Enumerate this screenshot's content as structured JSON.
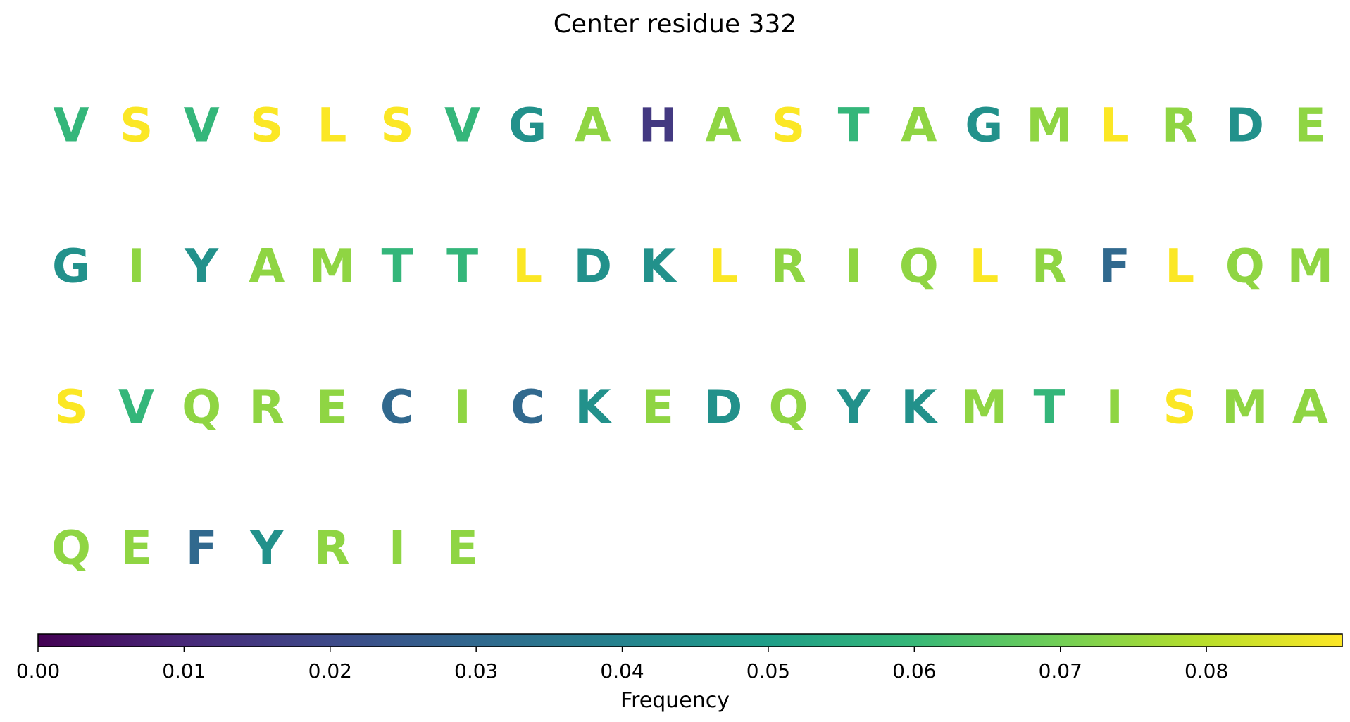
{
  "title": "Center residue 332",
  "chart_data": {
    "type": "heatmap",
    "title": "Center residue 332",
    "layout": "residue letters arranged in rows of 20, each colored by frequency (viridis colormap)",
    "colormap": "viridis",
    "residues": [
      {
        "letter": "V",
        "value": 0.059
      },
      {
        "letter": "S",
        "value": 0.089
      },
      {
        "letter": "V",
        "value": 0.059
      },
      {
        "letter": "S",
        "value": 0.089
      },
      {
        "letter": "L",
        "value": 0.089
      },
      {
        "letter": "S",
        "value": 0.089
      },
      {
        "letter": "V",
        "value": 0.059
      },
      {
        "letter": "G",
        "value": 0.045
      },
      {
        "letter": "A",
        "value": 0.074
      },
      {
        "letter": "H",
        "value": 0.015
      },
      {
        "letter": "A",
        "value": 0.074
      },
      {
        "letter": "S",
        "value": 0.089
      },
      {
        "letter": "T",
        "value": 0.059
      },
      {
        "letter": "A",
        "value": 0.074
      },
      {
        "letter": "G",
        "value": 0.045
      },
      {
        "letter": "M",
        "value": 0.074
      },
      {
        "letter": "L",
        "value": 0.089
      },
      {
        "letter": "R",
        "value": 0.074
      },
      {
        "letter": "D",
        "value": 0.045
      },
      {
        "letter": "E",
        "value": 0.074
      },
      {
        "letter": "G",
        "value": 0.045
      },
      {
        "letter": "I",
        "value": 0.074
      },
      {
        "letter": "Y",
        "value": 0.045
      },
      {
        "letter": "A",
        "value": 0.074
      },
      {
        "letter": "M",
        "value": 0.074
      },
      {
        "letter": "T",
        "value": 0.059
      },
      {
        "letter": "T",
        "value": 0.059
      },
      {
        "letter": "L",
        "value": 0.089
      },
      {
        "letter": "D",
        "value": 0.045
      },
      {
        "letter": "K",
        "value": 0.045
      },
      {
        "letter": "L",
        "value": 0.089
      },
      {
        "letter": "R",
        "value": 0.074
      },
      {
        "letter": "I",
        "value": 0.074
      },
      {
        "letter": "Q",
        "value": 0.074
      },
      {
        "letter": "L",
        "value": 0.089
      },
      {
        "letter": "R",
        "value": 0.074
      },
      {
        "letter": "F",
        "value": 0.03
      },
      {
        "letter": "L",
        "value": 0.089
      },
      {
        "letter": "Q",
        "value": 0.074
      },
      {
        "letter": "M",
        "value": 0.074
      },
      {
        "letter": "S",
        "value": 0.089
      },
      {
        "letter": "V",
        "value": 0.059
      },
      {
        "letter": "Q",
        "value": 0.074
      },
      {
        "letter": "R",
        "value": 0.074
      },
      {
        "letter": "E",
        "value": 0.074
      },
      {
        "letter": "C",
        "value": 0.03
      },
      {
        "letter": "I",
        "value": 0.074
      },
      {
        "letter": "C",
        "value": 0.03
      },
      {
        "letter": "K",
        "value": 0.045
      },
      {
        "letter": "E",
        "value": 0.074
      },
      {
        "letter": "D",
        "value": 0.045
      },
      {
        "letter": "Q",
        "value": 0.074
      },
      {
        "letter": "Y",
        "value": 0.045
      },
      {
        "letter": "K",
        "value": 0.045
      },
      {
        "letter": "M",
        "value": 0.074
      },
      {
        "letter": "T",
        "value": 0.059
      },
      {
        "letter": "I",
        "value": 0.074
      },
      {
        "letter": "S",
        "value": 0.089
      },
      {
        "letter": "M",
        "value": 0.074
      },
      {
        "letter": "A",
        "value": 0.074
      },
      {
        "letter": "Q",
        "value": 0.074
      },
      {
        "letter": "E",
        "value": 0.074
      },
      {
        "letter": "F",
        "value": 0.03
      },
      {
        "letter": "Y",
        "value": 0.045
      },
      {
        "letter": "R",
        "value": 0.074
      },
      {
        "letter": "I",
        "value": 0.074
      },
      {
        "letter": "E",
        "value": 0.074
      }
    ],
    "colorbar": {
      "label": "Frequency",
      "range": [
        0,
        0.0893
      ],
      "ticks": [
        "0.00",
        "0.01",
        "0.02",
        "0.03",
        "0.04",
        "0.05",
        "0.06",
        "0.07",
        "0.08"
      ]
    }
  },
  "colors": {
    "viridis_stops": [
      "#440154",
      "#482878",
      "#3e4989",
      "#31688e",
      "#26828e",
      "#1f9e89",
      "#35b779",
      "#6ece58",
      "#b5de2b",
      "#fde725"
    ]
  }
}
